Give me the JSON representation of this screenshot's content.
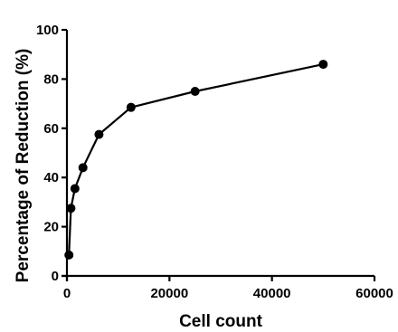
{
  "chart_data": {
    "type": "line",
    "title": "",
    "xlabel": "Cell count",
    "ylabel": "Percentage of Reduction (%)",
    "xlim": [
      0,
      60000
    ],
    "ylim": [
      0,
      100
    ],
    "x_ticks": [
      0,
      20000,
      40000,
      60000
    ],
    "y_ticks": [
      0,
      20,
      40,
      60,
      80,
      100
    ],
    "grid": false,
    "series": [
      {
        "x": [
          390,
          780,
          1560,
          3125,
          6250,
          12500,
          25000,
          50000
        ],
        "y": [
          8.5,
          27.5,
          35.5,
          44,
          57.5,
          68.5,
          75,
          86
        ],
        "color": "#000000"
      }
    ]
  }
}
